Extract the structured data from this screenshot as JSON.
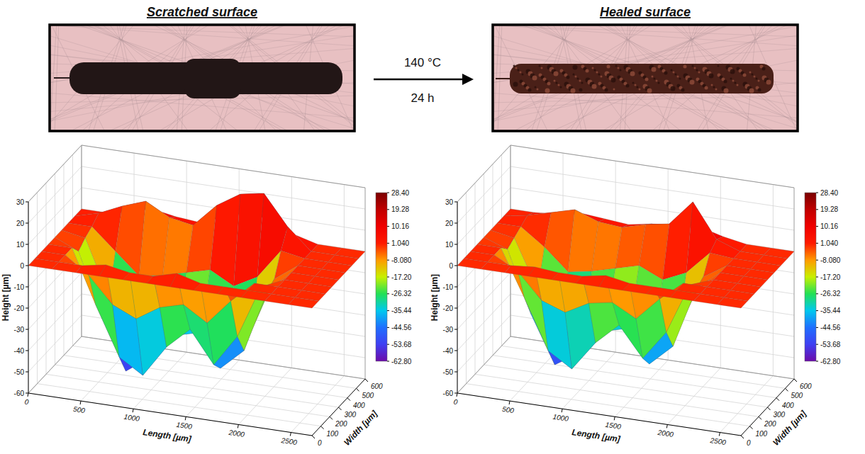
{
  "chart_data": [
    {
      "type": "surface",
      "title": "Scratched surface",
      "x_label": "Length [µm]",
      "y_label": "Width [µm]",
      "z_label": "Height [µm]",
      "xlim": [
        0,
        2700
      ],
      "xticks": [
        0,
        500,
        1000,
        1500,
        2000,
        2500
      ],
      "ylim": [
        0,
        600
      ],
      "yticks": [
        0,
        100,
        200,
        300,
        400,
        500,
        600
      ],
      "zlim": [
        -60,
        30
      ],
      "zticks": [
        -60,
        -50,
        -40,
        -30,
        -20,
        -10,
        0,
        10,
        20,
        30
      ],
      "grid": true,
      "x": [
        0,
        225,
        450,
        675,
        900,
        1125,
        1350,
        1575,
        1800,
        2025,
        2250,
        2475,
        2700
      ],
      "y": [
        0,
        75,
        150,
        225,
        300,
        375,
        450,
        525,
        600
      ],
      "z": [
        [
          0,
          0,
          0,
          0,
          0,
          0,
          0,
          0,
          0,
          0,
          0,
          0,
          0
        ],
        [
          0,
          0,
          0,
          2,
          0,
          0,
          3,
          0,
          0,
          0,
          0,
          0,
          0
        ],
        [
          0,
          0,
          -8,
          -20,
          -25,
          -18,
          -15,
          -22,
          -10,
          0,
          0,
          0,
          0
        ],
        [
          0,
          0,
          -25,
          -48,
          -55,
          -40,
          -30,
          -45,
          -30,
          -5,
          0,
          0,
          0
        ],
        [
          0,
          -5,
          -35,
          -58,
          -50,
          -38,
          -35,
          -50,
          -40,
          -10,
          0,
          0,
          0
        ],
        [
          0,
          -2,
          -28,
          -45,
          -40,
          -32,
          -30,
          -42,
          -35,
          -8,
          0,
          0,
          0
        ],
        [
          0,
          0,
          -10,
          -20,
          -18,
          -15,
          -12,
          -18,
          -12,
          2,
          0,
          0,
          0
        ],
        [
          0,
          3,
          8,
          12,
          6,
          4,
          15,
          22,
          24,
          10,
          0,
          0,
          0
        ],
        [
          0,
          0,
          2,
          5,
          3,
          2,
          6,
          10,
          8,
          3,
          0,
          0,
          0
        ]
      ],
      "colorbar": {
        "range": [
          -62.8,
          28.4
        ],
        "ticks": [
          {
            "value": 28.4,
            "label": "28.40"
          },
          19.28,
          10.16,
          {
            "value": 1.04,
            "label": "1.040"
          },
          {
            "value": -8.08,
            "label": "-8.080"
          },
          {
            "value": -17.2,
            "label": "-17.20"
          },
          -26.32,
          -35.44,
          -44.56,
          -53.68,
          {
            "value": -62.8,
            "label": "-62.80"
          }
        ]
      }
    },
    {
      "type": "surface",
      "title": "Healed surface",
      "x_label": "Length [µm]",
      "y_label": "Width [µm]",
      "z_label": "Height [µm]",
      "xlim": [
        0,
        2700
      ],
      "xticks": [
        0,
        500,
        1000,
        1500,
        2000,
        2500
      ],
      "ylim": [
        0,
        600
      ],
      "yticks": [
        0,
        100,
        200,
        300,
        400,
        500,
        600
      ],
      "zlim": [
        -60,
        30
      ],
      "zticks": [
        -60,
        -50,
        -40,
        -30,
        -20,
        -10,
        0,
        10,
        20,
        30
      ],
      "grid": true,
      "x": [
        0,
        225,
        450,
        675,
        900,
        1125,
        1350,
        1575,
        1800,
        2025,
        2250,
        2475,
        2700
      ],
      "y": [
        0,
        75,
        150,
        225,
        300,
        375,
        450,
        525,
        600
      ],
      "z": [
        [
          0,
          0,
          0,
          0,
          0,
          0,
          0,
          0,
          0,
          0,
          0,
          0,
          0
        ],
        [
          0,
          0,
          0,
          1,
          0,
          0,
          2,
          0,
          0,
          0,
          0,
          0,
          0
        ],
        [
          0,
          0,
          -6,
          -18,
          -22,
          -16,
          -14,
          -20,
          -9,
          0,
          0,
          0,
          0
        ],
        [
          0,
          0,
          -22,
          -45,
          -52,
          -38,
          -28,
          -42,
          -28,
          -4,
          0,
          0,
          0
        ],
        [
          0,
          -4,
          -33,
          -55,
          -48,
          -36,
          -33,
          -48,
          -38,
          -9,
          0,
          0,
          0
        ],
        [
          0,
          -2,
          -25,
          -42,
          -38,
          -30,
          -28,
          -40,
          -32,
          -7,
          0,
          0,
          0
        ],
        [
          0,
          0,
          -8,
          -18,
          -16,
          -13,
          -10,
          -15,
          -10,
          1,
          0,
          0,
          0
        ],
        [
          0,
          2,
          5,
          8,
          4,
          3,
          6,
          8,
          20,
          4,
          0,
          0,
          0
        ],
        [
          0,
          0,
          1,
          3,
          2,
          1,
          3,
          4,
          5,
          2,
          0,
          0,
          0
        ]
      ],
      "colorbar": {
        "range": [
          -62.8,
          28.4
        ],
        "ticks": [
          {
            "value": 28.4,
            "label": "28.40"
          },
          19.28,
          10.16,
          {
            "value": 1.04,
            "label": "1.040"
          },
          {
            "value": -8.08,
            "label": "-8.080"
          },
          {
            "value": -17.2,
            "label": "-17.20"
          },
          -26.32,
          -35.44,
          -44.56,
          -53.68,
          {
            "value": -62.8,
            "label": "-62.80"
          }
        ]
      }
    }
  ],
  "arrow_labels": [
    "140 °C",
    "24 h"
  ]
}
